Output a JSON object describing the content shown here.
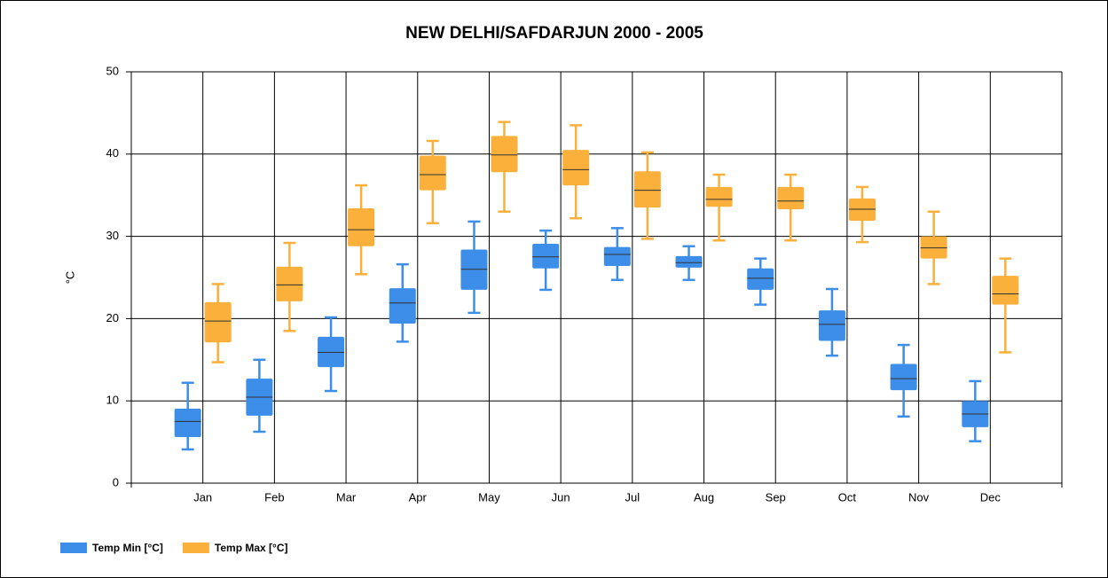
{
  "chart_data": {
    "type": "box",
    "title": "NEW DELHI/SAFDARJUN 2000 - 2005",
    "y_label": "°C",
    "categories": [
      "Jan",
      "Feb",
      "Mar",
      "Apr",
      "May",
      "Jun",
      "Jul",
      "Aug",
      "Sep",
      "Oct",
      "Nov",
      "Dec"
    ],
    "ylim": [
      0,
      50
    ],
    "yticks": [
      0,
      10,
      20,
      30,
      40,
      50
    ],
    "grid": true,
    "legend": "bottom-left",
    "series": [
      {
        "name": "Temp Min [°C]",
        "color": "#3d8ee8",
        "min": [
          4.1,
          6.25,
          11.2,
          17.2,
          20.7,
          23.5,
          24.7,
          24.7,
          21.7,
          15.5,
          8.1,
          5.1
        ],
        "q1": [
          5.6,
          8.2,
          14.1,
          19.4,
          23.5,
          26.1,
          26.4,
          26.2,
          23.5,
          17.3,
          11.3,
          6.8
        ],
        "median": [
          7.5,
          10.45,
          15.9,
          21.9,
          26.0,
          27.5,
          27.8,
          26.8,
          24.9,
          19.3,
          12.7,
          8.4
        ],
        "q3": [
          9.05,
          12.7,
          17.8,
          23.7,
          28.4,
          29.1,
          28.7,
          27.6,
          26.1,
          21.0,
          14.5,
          10.0
        ],
        "max": [
          12.2,
          15.0,
          20.15,
          26.6,
          31.8,
          30.7,
          31.0,
          28.8,
          27.3,
          23.6,
          16.8,
          12.4
        ]
      },
      {
        "name": "Temp Max [°C]",
        "color": "#fbb03b",
        "min": [
          14.7,
          18.5,
          25.4,
          31.6,
          33.0,
          32.2,
          29.7,
          29.5,
          29.5,
          29.3,
          24.2,
          15.9
        ],
        "q1": [
          17.1,
          22.1,
          28.8,
          35.6,
          37.8,
          36.2,
          33.5,
          33.6,
          33.3,
          31.9,
          27.3,
          21.7
        ],
        "median": [
          19.7,
          24.1,
          30.8,
          37.5,
          39.9,
          38.1,
          35.6,
          34.5,
          34.3,
          33.3,
          28.6,
          23.0
        ],
        "q3": [
          22.0,
          26.3,
          33.4,
          39.8,
          42.2,
          40.5,
          37.9,
          36.0,
          36.0,
          34.6,
          30.0,
          25.2
        ],
        "max": [
          24.2,
          29.2,
          36.2,
          41.6,
          43.9,
          43.5,
          40.2,
          37.5,
          37.5,
          36.0,
          33.0,
          27.3
        ]
      }
    ]
  }
}
